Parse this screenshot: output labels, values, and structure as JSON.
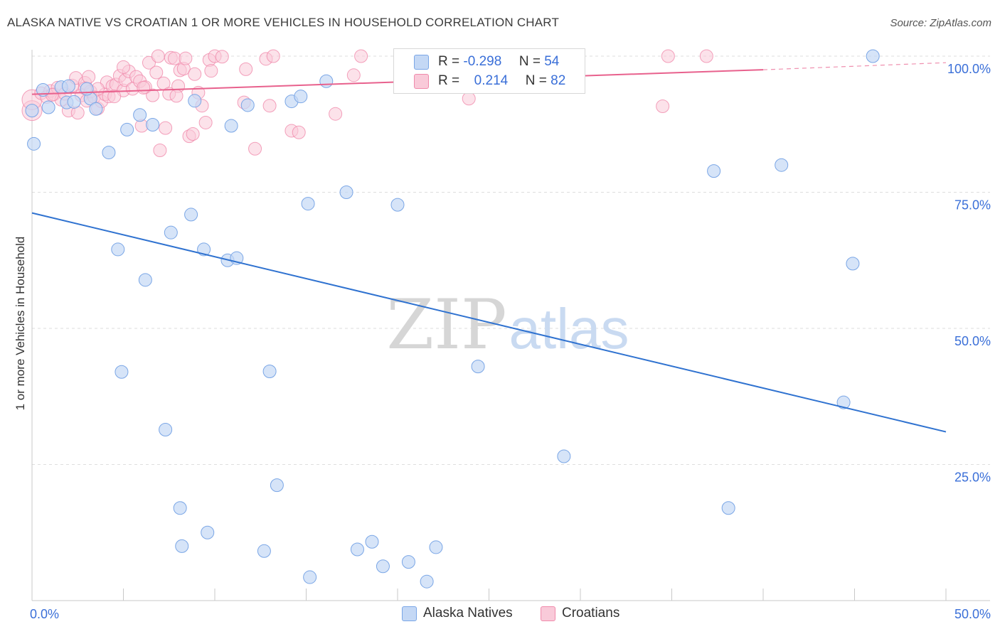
{
  "title": "ALASKA NATIVE VS CROATIAN 1 OR MORE VEHICLES IN HOUSEHOLD CORRELATION CHART",
  "source": "Source: ZipAtlas.com",
  "colors": {
    "blue": "#7aa6e6",
    "blue_fill": "#c4d8f5",
    "blue_line": "#2f72d0",
    "pink": "#f08aab",
    "pink_fill": "#f9cad9",
    "pink_line": "#e8618d",
    "axis_label": "#3a6fd8"
  },
  "legend_top": {
    "rows": [
      {
        "series": "Alaska Natives",
        "r_label": "R =",
        "r_value": "-0.298",
        "n_label": "N =",
        "n_value": "54"
      },
      {
        "series": "Croatians",
        "r_label": "R =",
        "r_value": "0.214",
        "n_label": "N =",
        "n_value": "82"
      }
    ]
  },
  "legend_bottom": [
    "Alaska Natives",
    "Croatians"
  ],
  "watermark": {
    "part1": "ZIP",
    "part2": "atlas"
  },
  "chart_data": {
    "type": "scatter",
    "title": "ALASKA NATIVE VS CROATIAN 1 OR MORE VEHICLES IN HOUSEHOLD CORRELATION CHART",
    "xlabel": "",
    "ylabel": "1 or more Vehicles in Household",
    "xlim": [
      0,
      50
    ],
    "ylim": [
      0,
      102.5
    ],
    "x_tick_labels": [
      "0.0%",
      "50.0%"
    ],
    "y_tick_labels": [
      "100.0%",
      "75.0%",
      "50.0%",
      "25.0%"
    ],
    "y_ticks": [
      100,
      75,
      50,
      25
    ],
    "grid": true,
    "series": [
      {
        "name": "Alaska Natives",
        "points": [
          [
            0.1,
            83.9
          ],
          [
            0.6,
            93.8
          ],
          [
            0.9,
            90.6
          ],
          [
            1.6,
            94.3
          ],
          [
            1.9,
            91.5
          ],
          [
            2.0,
            94.5
          ],
          [
            2.3,
            91.6
          ],
          [
            3.2,
            92.2
          ],
          [
            3.5,
            90.3
          ],
          [
            4.2,
            82.3
          ],
          [
            4.7,
            64.5
          ],
          [
            4.9,
            42.0
          ],
          [
            5.2,
            86.5
          ],
          [
            5.9,
            89.2
          ],
          [
            6.2,
            58.9
          ],
          [
            6.6,
            87.4
          ],
          [
            7.3,
            31.4
          ],
          [
            7.6,
            67.6
          ],
          [
            8.1,
            17.0
          ],
          [
            8.2,
            10.0
          ],
          [
            8.7,
            70.9
          ],
          [
            8.9,
            91.8
          ],
          [
            9.4,
            64.5
          ],
          [
            9.6,
            12.5
          ],
          [
            10.7,
            62.5
          ],
          [
            10.9,
            87.2
          ],
          [
            11.2,
            62.9
          ],
          [
            12.7,
            9.1
          ],
          [
            13.0,
            42.1
          ],
          [
            13.4,
            21.2
          ],
          [
            14.2,
            91.7
          ],
          [
            14.7,
            92.6
          ],
          [
            15.1,
            72.9
          ],
          [
            15.2,
            4.3
          ],
          [
            16.1,
            95.4
          ],
          [
            17.2,
            75.0
          ],
          [
            17.8,
            9.4
          ],
          [
            18.6,
            10.8
          ],
          [
            19.2,
            6.3
          ],
          [
            20.0,
            72.7
          ],
          [
            20.6,
            7.1
          ],
          [
            21.6,
            3.5
          ],
          [
            22.1,
            9.8
          ],
          [
            24.4,
            43.0
          ],
          [
            29.1,
            26.5
          ],
          [
            37.3,
            78.9
          ],
          [
            38.1,
            17.0
          ],
          [
            41.0,
            80.0
          ],
          [
            44.4,
            36.4
          ],
          [
            44.9,
            61.9
          ],
          [
            46.0,
            100.0
          ],
          [
            0.0,
            90.0
          ],
          [
            3.0,
            94.0
          ],
          [
            11.8,
            91.0
          ]
        ],
        "trend": {
          "x": [
            0,
            50
          ],
          "y": [
            71.2,
            31.0
          ]
        }
      },
      {
        "name": "Croatians",
        "points": [
          [
            0.0,
            90.0
          ],
          [
            0.0,
            92.0
          ],
          [
            0.5,
            93.2
          ],
          [
            0.8,
            92.5
          ],
          [
            1.0,
            93.6
          ],
          [
            1.2,
            93.0
          ],
          [
            1.4,
            94.2
          ],
          [
            1.6,
            92.0
          ],
          [
            1.8,
            93.1
          ],
          [
            2.0,
            90.0
          ],
          [
            2.2,
            94.6
          ],
          [
            2.4,
            96.0
          ],
          [
            2.5,
            89.6
          ],
          [
            2.7,
            92.8
          ],
          [
            2.9,
            95.1
          ],
          [
            3.0,
            91.8
          ],
          [
            3.1,
            96.2
          ],
          [
            3.2,
            93.5
          ],
          [
            3.4,
            92.5
          ],
          [
            3.6,
            90.4
          ],
          [
            3.8,
            91.7
          ],
          [
            4.0,
            93.0
          ],
          [
            4.1,
            95.2
          ],
          [
            4.2,
            92.6
          ],
          [
            4.4,
            94.5
          ],
          [
            4.6,
            94.8
          ],
          [
            4.8,
            96.4
          ],
          [
            5.0,
            93.7
          ],
          [
            5.1,
            95.6
          ],
          [
            5.3,
            97.2
          ],
          [
            5.5,
            94.0
          ],
          [
            5.7,
            96.2
          ],
          [
            5.9,
            95.4
          ],
          [
            6.0,
            87.2
          ],
          [
            6.2,
            94.3
          ],
          [
            6.4,
            98.8
          ],
          [
            6.6,
            92.8
          ],
          [
            6.8,
            97.0
          ],
          [
            6.9,
            100.0
          ],
          [
            7.0,
            82.7
          ],
          [
            7.2,
            95.0
          ],
          [
            7.3,
            86.8
          ],
          [
            7.5,
            93.1
          ],
          [
            7.6,
            99.7
          ],
          [
            7.8,
            99.6
          ],
          [
            8.0,
            94.5
          ],
          [
            8.1,
            97.4
          ],
          [
            8.3,
            97.7
          ],
          [
            8.4,
            99.6
          ],
          [
            8.6,
            85.3
          ],
          [
            8.8,
            85.7
          ],
          [
            8.9,
            96.7
          ],
          [
            9.1,
            93.3
          ],
          [
            9.3,
            90.9
          ],
          [
            9.5,
            87.8
          ],
          [
            9.7,
            99.3
          ],
          [
            9.8,
            97.3
          ],
          [
            10.0,
            100.0
          ],
          [
            10.4,
            99.9
          ],
          [
            11.6,
            91.5
          ],
          [
            11.7,
            97.6
          ],
          [
            12.2,
            83.0
          ],
          [
            12.8,
            99.5
          ],
          [
            13.0,
            90.9
          ],
          [
            13.2,
            100.0
          ],
          [
            14.2,
            86.3
          ],
          [
            14.6,
            86.0
          ],
          [
            16.6,
            89.4
          ],
          [
            17.6,
            96.5
          ],
          [
            18.0,
            100.0
          ],
          [
            23.9,
            92.2
          ],
          [
            24.0,
            100.0
          ],
          [
            34.5,
            90.8
          ],
          [
            34.8,
            100.0
          ],
          [
            36.9,
            100.0
          ],
          [
            1.1,
            92.9
          ],
          [
            2.9,
            94.1
          ],
          [
            4.5,
            92.6
          ],
          [
            6.1,
            94.2
          ],
          [
            7.9,
            92.7
          ],
          [
            3.6,
            94.0
          ],
          [
            5.0,
            98.0
          ]
        ],
        "trend": {
          "x": [
            0,
            40
          ],
          "y": [
            93.0,
            97.5
          ],
          "dashed_extension": {
            "x": [
              40,
              50
            ],
            "y": [
              97.5,
              98.8
            ]
          }
        }
      }
    ]
  }
}
